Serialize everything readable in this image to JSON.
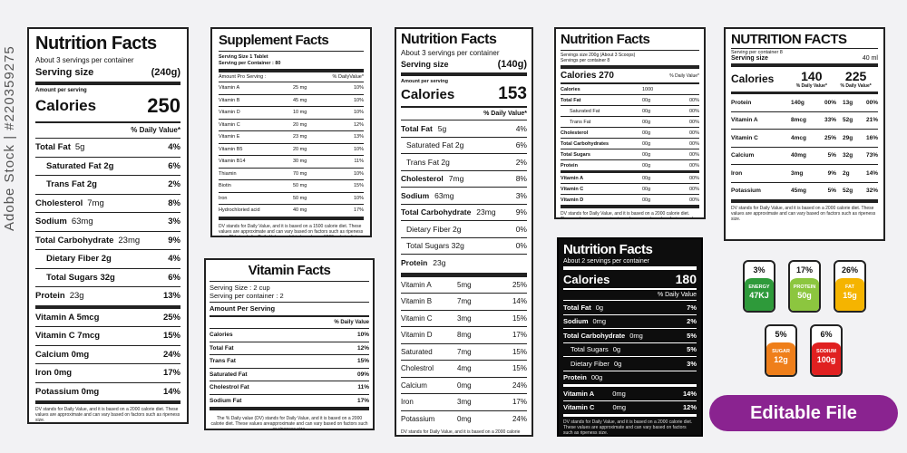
{
  "watermark": "Adobe Stock | #220359275",
  "panel1": {
    "title": "Nutrition Facts",
    "servings": "About 3 servings per container",
    "serving_label": "Serving size",
    "serving_value": "(240g)",
    "amount": "Amount per serving",
    "calories_label": "Calories",
    "calories_value": "250",
    "dv": "% Daily Value*",
    "rows": [
      {
        "label": "Total Fat",
        "amt": "5g",
        "pct": "4%"
      },
      {
        "label": "Saturated Fat 2g",
        "amt": "",
        "pct": "6%"
      },
      {
        "label": "Trans Fat 2g",
        "amt": "",
        "pct": "2%"
      },
      {
        "label": "Cholesterol",
        "amt": "7mg",
        "pct": "8%"
      },
      {
        "label": "Sodium",
        "amt": "63mg",
        "pct": "3%"
      },
      {
        "label": "Total Carbohydrate",
        "amt": "23mg",
        "pct": "9%"
      },
      {
        "label": "Dietary Fiber 2g",
        "amt": "",
        "pct": "4%"
      },
      {
        "label": "Total Sugars 32g",
        "amt": "",
        "pct": "6%"
      },
      {
        "label": "Protein",
        "amt": "23g",
        "pct": "13%"
      },
      {
        "label": "Vitamin A 5mcg",
        "amt": "",
        "pct": "25%"
      },
      {
        "label": "Vitamin C 7mcg",
        "amt": "",
        "pct": "15%"
      },
      {
        "label": "Calcium 0mg",
        "amt": "",
        "pct": "24%"
      },
      {
        "label": "Iron 0mg",
        "amt": "",
        "pct": "17%"
      },
      {
        "label": "Potassium 0mg",
        "amt": "",
        "pct": "14%"
      }
    ],
    "footnote": "DV stands for Daily Value, and it is based on a 2000 calorie diet. These values are approximate and can vary based on factors such as ripeness size."
  },
  "panel2": {
    "title": "Supplement Facts",
    "serving_size": "Serving Size 1 Tablet",
    "per_container": "Serving per Container : 80",
    "head_left": "Amount Pro Serving :",
    "head_right": "% DailyValue*",
    "rows": [
      {
        "label": "Vitamin A",
        "amt": "25 mg",
        "pct": "10%"
      },
      {
        "label": "Vitamin B",
        "amt": "45 mg",
        "pct": "10%"
      },
      {
        "label": "Vitamin D",
        "amt": "10 mg",
        "pct": "10%"
      },
      {
        "label": "Vitamin C",
        "amt": "20 mg",
        "pct": "12%"
      },
      {
        "label": "Vitamin E",
        "amt": "23 mg",
        "pct": "13%"
      },
      {
        "label": "Vitamin B5",
        "amt": "20 mg",
        "pct": "10%"
      },
      {
        "label": "Vitamin B14",
        "amt": "30 mg",
        "pct": "11%"
      },
      {
        "label": "Thiamin",
        "amt": "70 mg",
        "pct": "10%"
      },
      {
        "label": "Biotin",
        "amt": "50 mg",
        "pct": "15%"
      },
      {
        "label": "Iron",
        "amt": "50 mg",
        "pct": "10%"
      },
      {
        "label": "Hydrochloried acid",
        "amt": "40 mg",
        "pct": "17%"
      }
    ],
    "footnote": "DV stands for Daily Value, and it is based on a 1500 calorie diet. These values are approximate and can vary based on factors such as ripeness size. DV stands for Daily Value, and it is based on a 1500 calorie diet."
  },
  "panel3": {
    "title": "Vitamin Facts",
    "serving": "Serving Size : 2 cup",
    "per_container": "Serving per container : 2",
    "amount": "Amount Per Serving",
    "dv": "% Daily Value",
    "rows": [
      {
        "label": "Calories",
        "pct": "10%"
      },
      {
        "label": "Total Fat",
        "pct": "12%"
      },
      {
        "label": "Trans Fat",
        "pct": "15%"
      },
      {
        "label": "Saturated Fat",
        "pct": "09%"
      },
      {
        "label": "Cholestrol Fat",
        "pct": "11%"
      },
      {
        "label": "Sodium Fat",
        "pct": "17%"
      }
    ],
    "footnote": "The % Daily value (DV) stands for Daily Value, and it is based on a 2000 calorie diet. These values areapproximate and can vary based on factors such as ripeness size."
  },
  "panel4": {
    "title": "Nutrition Facts",
    "servings": "About 3 servings per container",
    "serving_label": "Serving size",
    "serving_value": "(140g)",
    "amount": "Amount per serving",
    "calories_label": "Calories",
    "calories_value": "153",
    "dv": "% Daily Value*",
    "rows": [
      {
        "label": "Total Fat",
        "amt": "5g",
        "pct": "4%",
        "bold": true,
        "indent": false
      },
      {
        "label": "Saturated Fat 2g",
        "amt": "",
        "pct": "6%",
        "bold": false,
        "indent": true
      },
      {
        "label": "Trans Fat 2g",
        "amt": "",
        "pct": "2%",
        "bold": false,
        "indent": true
      },
      {
        "label": "Cholesterol",
        "amt": "7mg",
        "pct": "8%",
        "bold": true,
        "indent": false
      },
      {
        "label": "Sodium",
        "amt": "63mg",
        "pct": "3%",
        "bold": true,
        "indent": false
      },
      {
        "label": "Total Carbohydrate",
        "amt": "23mg",
        "pct": "9%",
        "bold": true,
        "indent": false
      },
      {
        "label": "Dietary Fiber 2g",
        "amt": "",
        "pct": "0%",
        "bold": false,
        "indent": true
      },
      {
        "label": "Total Sugars 32g",
        "amt": "",
        "pct": "0%",
        "bold": false,
        "indent": true
      },
      {
        "label": "Protein",
        "amt": "23g",
        "pct": "",
        "bold": true,
        "indent": false
      }
    ],
    "vitamins": [
      {
        "label": "Vitamin A",
        "amt": "5mg",
        "pct": "25%"
      },
      {
        "label": "Vitamin B",
        "amt": "7mg",
        "pct": "14%"
      },
      {
        "label": "Vitamin C",
        "amt": "3mg",
        "pct": "15%"
      },
      {
        "label": "Vitamin D",
        "amt": "8mg",
        "pct": "17%"
      },
      {
        "label": "Saturated",
        "amt": "7mg",
        "pct": "15%"
      },
      {
        "label": "Cholestrol",
        "amt": "4mg",
        "pct": "15%"
      },
      {
        "label": "Calcium",
        "amt": "0mg",
        "pct": "24%"
      },
      {
        "label": "Iron",
        "amt": "3mg",
        "pct": "17%"
      },
      {
        "label": "Potassium",
        "amt": "0mg",
        "pct": "24%"
      }
    ],
    "footnote": "DV stands for Daily Value, and it is based on a 2000 calorie diet. These values are approximate and can vary based on factors such as ripeness size."
  },
  "panel5": {
    "title": "Nutrition Facts",
    "line1": "Servings size 200g (About 3 Scoops)",
    "line2": "Servings per container 8",
    "calories_label": "Calories 270",
    "dv": "% Daily Value*",
    "rows": [
      {
        "label": "Calories",
        "amt": "1000",
        "pct": "",
        "bold": true,
        "indent": false
      },
      {
        "label": "Total Fat",
        "amt": "00g",
        "pct": "00%",
        "bold": true,
        "indent": false
      },
      {
        "label": "Saturated Fat",
        "amt": "00g",
        "pct": "00%",
        "bold": false,
        "indent": true
      },
      {
        "label": "Trans Fat",
        "amt": "00g",
        "pct": "00%",
        "bold": false,
        "indent": true
      },
      {
        "label": "Cholesterol",
        "amt": "00g",
        "pct": "00%",
        "bold": true,
        "indent": false
      },
      {
        "label": "Total Carbohydrates",
        "amt": "00g",
        "pct": "00%",
        "bold": true,
        "indent": false
      },
      {
        "label": "Total Sugars",
        "amt": "00g",
        "pct": "00%",
        "bold": true,
        "indent": false
      },
      {
        "label": "Protein",
        "amt": "00g",
        "pct": "00%",
        "bold": true,
        "indent": false
      },
      {
        "label": "Vitamin A",
        "amt": "00g",
        "pct": "00%",
        "bold": true,
        "indent": false
      },
      {
        "label": "Vitamin C",
        "amt": "00g",
        "pct": "00%",
        "bold": true,
        "indent": false
      },
      {
        "label": "Vitamin D",
        "amt": "00g",
        "pct": "00%",
        "bold": true,
        "indent": false
      }
    ],
    "footnote": "DV stands for Daily Value, and it is based on a 2000 calorie diet. These values are approximate and can vary based on factors such as ripeness size."
  },
  "panel6": {
    "title": "Nutrition Facts",
    "servings": "About 2 servings per container",
    "calories_label": "Calories",
    "calories_value": "180",
    "dv": "% Daily Value",
    "rows": [
      {
        "label": "Total Fat",
        "amt": "0g",
        "pct": "7%",
        "bold": true,
        "indent": false
      },
      {
        "label": "Sodium",
        "amt": "0mg",
        "pct": "2%",
        "bold": true,
        "indent": false
      },
      {
        "label": "Total Carbohydrate",
        "amt": "0mg",
        "pct": "5%",
        "bold": true,
        "indent": false
      },
      {
        "label": "Total Sugars",
        "amt": "0g",
        "pct": "5%",
        "bold": false,
        "indent": true
      },
      {
        "label": "Dietary Fiber",
        "amt": "0g",
        "pct": "3%",
        "bold": false,
        "indent": true
      },
      {
        "label": "Protein",
        "amt": "00g",
        "pct": "",
        "bold": true,
        "indent": false
      },
      {
        "label": "Vitamin A",
        "amt": "0mg",
        "pct": "14%",
        "bold": true,
        "indent": false
      },
      {
        "label": "Vitamin C",
        "amt": "0mg",
        "pct": "12%",
        "bold": true,
        "indent": false
      }
    ],
    "footnote": "DV stands for Daily Value, and it is based on a 2000 calorie diet. These values are approximate and can vary based on factors such as ripeness size."
  },
  "panel7": {
    "title": "NUTRITION FACTS",
    "line1": "Serving per container 8",
    "serving_label": "Serving size",
    "serving_value": "40 ml",
    "calories_label": "Calories",
    "cal1": "140",
    "cal2": "225",
    "dv1": "% Daily Value*",
    "dv2": "% Daily Value*",
    "rows": [
      {
        "label": "Protein",
        "a1": "140g",
        "p1": "00%",
        "a2": "13g",
        "p2": "00%"
      },
      {
        "label": "Vitamin A",
        "a1": "8mcg",
        "p1": "33%",
        "a2": "52g",
        "p2": "21%"
      },
      {
        "label": "Vitamin C",
        "a1": "4mcg",
        "p1": "25%",
        "a2": "29g",
        "p2": "16%"
      },
      {
        "label": "Calcium",
        "a1": "40mg",
        "p1": "5%",
        "a2": "32g",
        "p2": "73%"
      },
      {
        "label": "Iron",
        "a1": "3mg",
        "p1": "9%",
        "a2": "2g",
        "p2": "14%"
      },
      {
        "label": "Potassium",
        "a1": "45mg",
        "p1": "5%",
        "a2": "52g",
        "p2": "32%"
      }
    ],
    "footnote": "DV stands for Daily Value, and it is based on a 2000 calorie diet. These values are approximate and can vary based on factors such as ripeness size."
  },
  "badges": [
    {
      "pct": "3%",
      "name": "ENERGY",
      "value": "47KJ",
      "color": "#2e9a3a"
    },
    {
      "pct": "17%",
      "name": "PROTEIN",
      "value": "50g",
      "color": "#8cc63f"
    },
    {
      "pct": "26%",
      "name": "FAT",
      "value": "15g",
      "color": "#f5b400"
    },
    {
      "pct": "5%",
      "name": "SUGAR",
      "value": "12g",
      "color": "#ef7f1a"
    },
    {
      "pct": "6%",
      "name": "SODIUM",
      "value": "100g",
      "color": "#e02020"
    }
  ],
  "editable": "Editable File"
}
